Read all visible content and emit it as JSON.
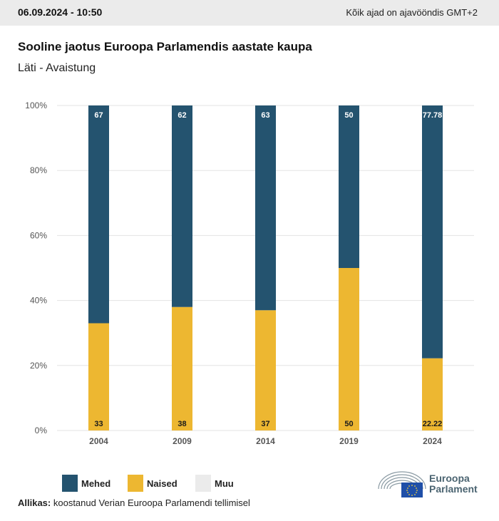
{
  "header": {
    "date": "06.09.2024 - 10:50",
    "timezone_note": "Kõik ajad on ajavööndis GMT+2"
  },
  "title": "Sooline jaotus Euroopa Parlamendis aastate kaupa",
  "subtitle": "Läti - Avaistung",
  "colors": {
    "mehed": "#24536f",
    "naised": "#edb731",
    "muu": "#ebebeb",
    "grid": "#e3e3e3"
  },
  "chart_data": {
    "type": "bar",
    "stacked": true,
    "categories": [
      "2004",
      "2009",
      "2014",
      "2019",
      "2024"
    ],
    "series": [
      {
        "name": "Mehed",
        "values": [
          67,
          62,
          63,
          50,
          77.78
        ]
      },
      {
        "name": "Naised",
        "values": [
          33,
          38,
          37,
          50,
          22.22
        ]
      },
      {
        "name": "Muu",
        "values": [
          0,
          0,
          0,
          0,
          0
        ]
      }
    ],
    "y_ticks": [
      "0%",
      "20%",
      "40%",
      "60%",
      "80%",
      "100%"
    ],
    "ylim": [
      0,
      100
    ],
    "grid": true,
    "legend_position": "bottom-left"
  },
  "legend": [
    {
      "label": "Mehed",
      "color": "#24536f"
    },
    {
      "label": "Naised",
      "color": "#edb731"
    },
    {
      "label": "Muu",
      "color": "#ebebeb"
    }
  ],
  "source": {
    "label": "Allikas:",
    "text": " koostanud Verian Euroopa Parlamendi tellimisel"
  },
  "logo": {
    "line1": "Euroopa",
    "line2": "Parlament",
    "icon": "european-parliament-hemicycle-icon"
  }
}
